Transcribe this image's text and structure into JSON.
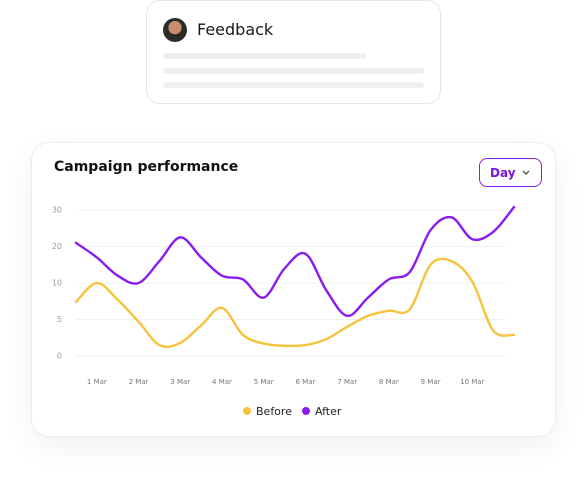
{
  "feedback": {
    "title": "Feedback"
  },
  "dropdown": {
    "label": "Day"
  },
  "chart_data": {
    "type": "line",
    "title": "Campaign performance",
    "categories": [
      null,
      "1 Mar",
      null,
      "2 Mar",
      null,
      "3 Mar",
      null,
      "4 Mar",
      null,
      "5 Mar",
      null,
      "6 Mar",
      null,
      "7 Mar",
      null,
      "8 Mar",
      null,
      "9 Mar",
      null,
      "10 Mar",
      null,
      null
    ],
    "series": [
      {
        "name": "Before",
        "color": "#f7c33c",
        "values": [
          7.4,
          10,
          7.7,
          4.7,
          1.5,
          1.8,
          4.2,
          6.6,
          2.9,
          1.7,
          1.4,
          1.5,
          2.3,
          4,
          5.5,
          6.2,
          6.4,
          15,
          16,
          10.4,
          3.5,
          2.9
        ]
      },
      {
        "name": "After",
        "color": "#8a1cf0",
        "values": [
          21,
          17,
          12,
          10,
          16,
          22.5,
          17,
          12,
          11,
          8,
          14,
          18,
          9,
          5.5,
          8,
          11,
          13,
          24.5,
          28,
          22,
          24,
          30.8
        ]
      }
    ],
    "ylim": [
      0,
      30
    ],
    "yticks": [
      0,
      5,
      10,
      20,
      30
    ],
    "grid": true,
    "legend": "bottom"
  }
}
